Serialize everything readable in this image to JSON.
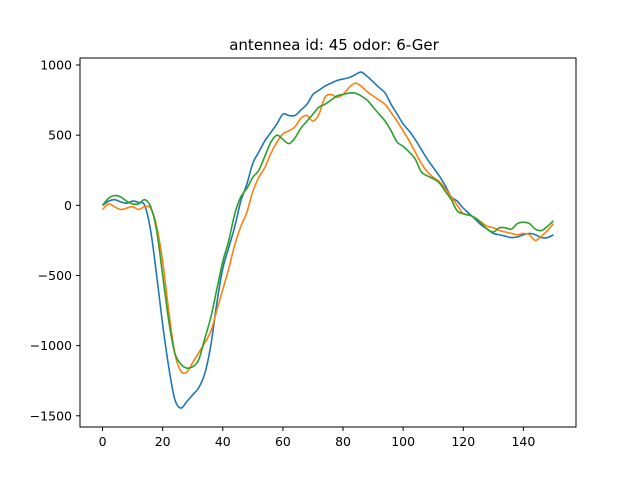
{
  "chart_data": {
    "type": "line",
    "title": "antennea id: 45    odor: 6-Ger",
    "xlabel": "",
    "ylabel": "",
    "xlim": [
      -7.5,
      157.5
    ],
    "ylim": [
      -1580,
      1050
    ],
    "xticks": [
      0,
      20,
      40,
      60,
      80,
      100,
      120,
      140
    ],
    "xtick_labels": [
      "0",
      "20",
      "40",
      "60",
      "80",
      "100",
      "120",
      "140"
    ],
    "yticks": [
      -1500,
      -1000,
      -500,
      0,
      500,
      1000
    ],
    "ytick_labels": [
      "−1500",
      "−1000",
      "−500",
      "0",
      "500",
      "1000"
    ],
    "grid": false,
    "colors": [
      "#1f77b4",
      "#ff7f0e",
      "#2ca02c"
    ],
    "x": [
      0,
      2,
      4,
      6,
      8,
      10,
      12,
      14,
      16,
      18,
      20,
      22,
      24,
      26,
      28,
      30,
      32,
      34,
      36,
      38,
      40,
      42,
      44,
      46,
      48,
      50,
      52,
      54,
      56,
      58,
      60,
      62,
      64,
      66,
      68,
      70,
      72,
      74,
      76,
      78,
      80,
      82,
      84,
      86,
      88,
      90,
      92,
      94,
      96,
      98,
      100,
      102,
      104,
      106,
      108,
      110,
      112,
      114,
      116,
      118,
      120,
      122,
      124,
      126,
      128,
      130,
      132,
      134,
      136,
      138,
      140,
      142,
      144,
      146,
      148,
      150
    ],
    "series": [
      {
        "values": [
          0,
          30,
          40,
          25,
          15,
          30,
          20,
          0,
          -180,
          -500,
          -850,
          -1150,
          -1380,
          -1445,
          -1400,
          -1350,
          -1300,
          -1200,
          -1000,
          -700,
          -450,
          -300,
          -150,
          30,
          150,
          300,
          380,
          460,
          520,
          580,
          650,
          640,
          640,
          680,
          720,
          790,
          820,
          850,
          870,
          890,
          900,
          910,
          930,
          950,
          920,
          880,
          840,
          800,
          720,
          650,
          580,
          530,
          470,
          400,
          330,
          270,
          210,
          140,
          60,
          30,
          -20,
          -60,
          -100,
          -140,
          -170,
          -200,
          -210,
          -220,
          -230,
          -225,
          -210,
          -200,
          -210,
          -230,
          -230,
          -210
        ],
        "color": "#1f77b4"
      },
      {
        "values": [
          -30,
          10,
          -10,
          -30,
          -20,
          -10,
          -30,
          -10,
          -20,
          -150,
          -400,
          -750,
          -1050,
          -1180,
          -1190,
          -1120,
          -1050,
          -980,
          -900,
          -750,
          -600,
          -450,
          -280,
          -150,
          -50,
          100,
          200,
          270,
          370,
          450,
          510,
          530,
          560,
          620,
          640,
          600,
          650,
          770,
          790,
          770,
          790,
          840,
          870,
          850,
          810,
          780,
          750,
          720,
          660,
          600,
          530,
          460,
          380,
          300,
          240,
          200,
          170,
          120,
          60,
          0,
          -60,
          -70,
          -90,
          -120,
          -150,
          -160,
          -180,
          -190,
          -200,
          -210,
          -200,
          -210,
          -250,
          -220,
          -180,
          -130
        ],
        "color": "#ff7f0e"
      },
      {
        "values": [
          0,
          50,
          70,
          60,
          30,
          10,
          10,
          40,
          -10,
          -180,
          -500,
          -820,
          -1050,
          -1130,
          -1160,
          -1150,
          -1100,
          -950,
          -800,
          -600,
          -400,
          -250,
          -60,
          60,
          120,
          200,
          250,
          350,
          450,
          500,
          470,
          440,
          480,
          550,
          600,
          650,
          700,
          720,
          750,
          780,
          790,
          800,
          800,
          780,
          750,
          700,
          650,
          600,
          530,
          450,
          420,
          380,
          330,
          240,
          210,
          190,
          160,
          100,
          40,
          -40,
          -60,
          -70,
          -90,
          -130,
          -170,
          -190,
          -160,
          -160,
          -170,
          -130,
          -120,
          -130,
          -170,
          -180,
          -150,
          -110
        ],
        "color": "#2ca02c"
      }
    ]
  }
}
